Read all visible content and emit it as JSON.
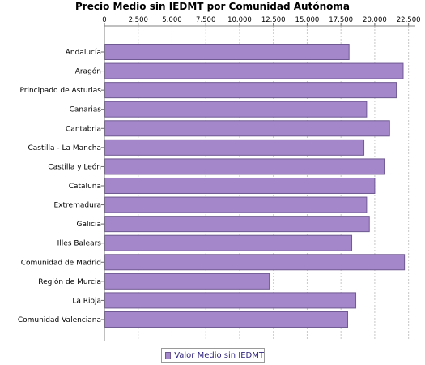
{
  "chart_data": {
    "type": "bar",
    "orientation": "horizontal",
    "title": "Precio Medio sin IEDMT por Comunidad Autónoma",
    "categories": [
      "Andalucía",
      "Aragón",
      "Principado de Asturias",
      "Canarias",
      "Cantabria",
      "Castilla - La Mancha",
      "Castilla y León",
      "Cataluña",
      "Extremadura",
      "Galicia",
      "Illes Balears",
      "Comunidad de Madrid",
      "Región de Murcia",
      "La Rioja",
      "Comunidad Valenciana"
    ],
    "series": [
      {
        "name": "Valor Medio sin IEDMT",
        "values": [
          18100,
          22100,
          21600,
          19400,
          21100,
          19200,
          20700,
          20000,
          19400,
          19600,
          18300,
          22200,
          12200,
          18600,
          18000
        ]
      }
    ],
    "xlim": [
      0,
      23000
    ],
    "x_ticks": [
      "0",
      "2.500",
      "5.000",
      "7.500",
      "10.000",
      "12.500",
      "15.000",
      "17.500",
      "20.000",
      "22.500"
    ],
    "x_tick_values": [
      0,
      2500,
      5000,
      7500,
      10000,
      12500,
      15000,
      17500,
      20000,
      22500
    ],
    "x_axis_position": "top",
    "grid": true,
    "legend_position": "bottom-center",
    "bar_color": "#a487ca",
    "bar_border_color": "#6f5a92"
  }
}
